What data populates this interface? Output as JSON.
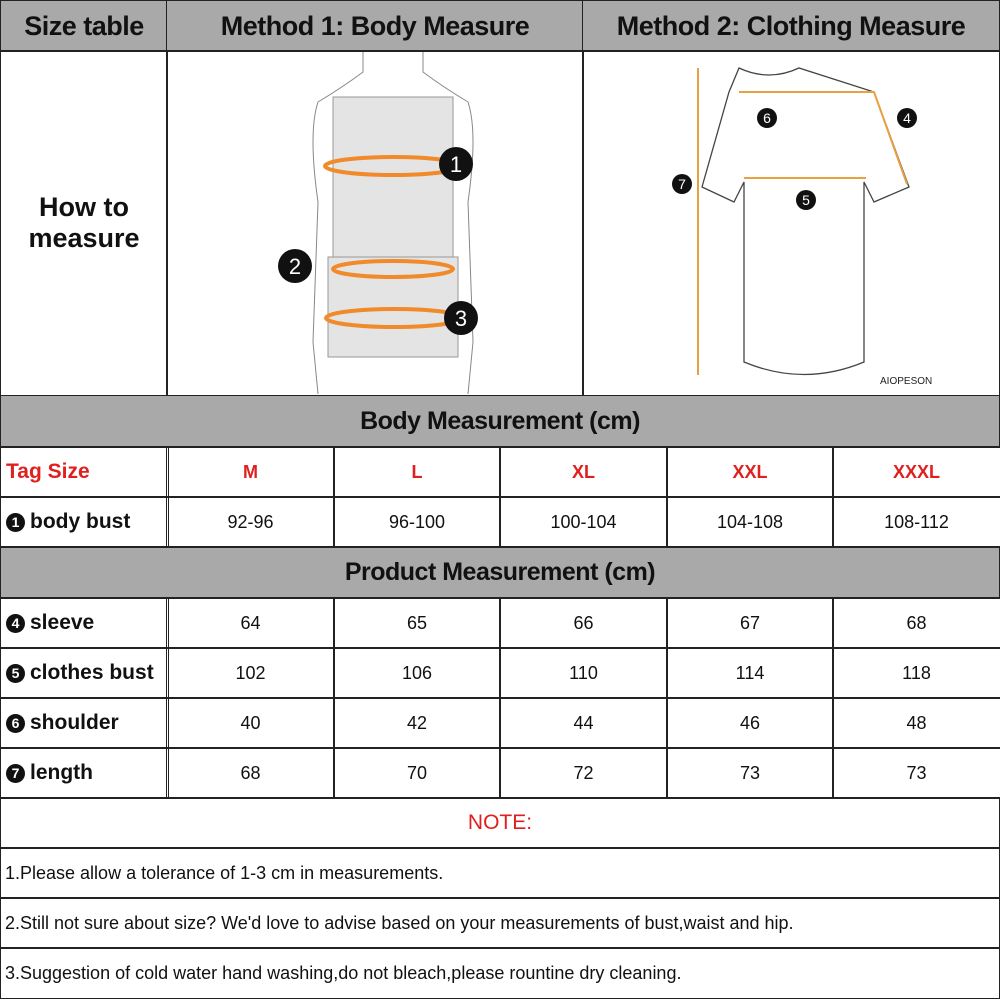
{
  "header": {
    "size_table": "Size table",
    "method1": "Method 1: Body  Measure",
    "method2": "Method 2: Clothing Measure"
  },
  "how_to": "How to measure",
  "figure_body": {
    "markers": [
      "1",
      "2",
      "3"
    ]
  },
  "figure_shirt": {
    "markers": [
      "6",
      "4",
      "7",
      "5"
    ],
    "brand": "AIOPESON"
  },
  "body_section": "Body Measurement (cm)",
  "product_section": "Product Measurement (cm)",
  "tag_label": "Tag Size",
  "sizes": [
    "M",
    "L",
    "XL",
    "XXL",
    "XXXL"
  ],
  "body_rows": [
    {
      "num": "1",
      "label": "body bust",
      "values": [
        "92-96",
        "96-100",
        "100-104",
        "104-108",
        "108-112"
      ]
    }
  ],
  "product_rows": [
    {
      "num": "4",
      "label": "sleeve",
      "values": [
        "64",
        "65",
        "66",
        "67",
        "68"
      ]
    },
    {
      "num": "5",
      "label": "clothes bust",
      "values": [
        "102",
        "106",
        "110",
        "114",
        "118"
      ]
    },
    {
      "num": "6",
      "label": "shoulder",
      "values": [
        "40",
        "42",
        "44",
        "46",
        "48"
      ]
    },
    {
      "num": "7",
      "label": "length",
      "values": [
        "68",
        "70",
        "72",
        "73",
        "73"
      ]
    }
  ],
  "note_title": "NOTE:",
  "notes": [
    "1.Please allow a tolerance of 1-3 cm in measurements.",
    "2.Still not sure about size? We'd love to advise based on your measurements of bust,waist and hip.",
    "3.Suggestion of cold water hand washing,do not bleach,please rountine dry cleaning."
  ],
  "colors": {
    "header_gray": "#a9a9a9",
    "accent_red": "#e0201e",
    "measure_orange": "#f08a2a"
  }
}
